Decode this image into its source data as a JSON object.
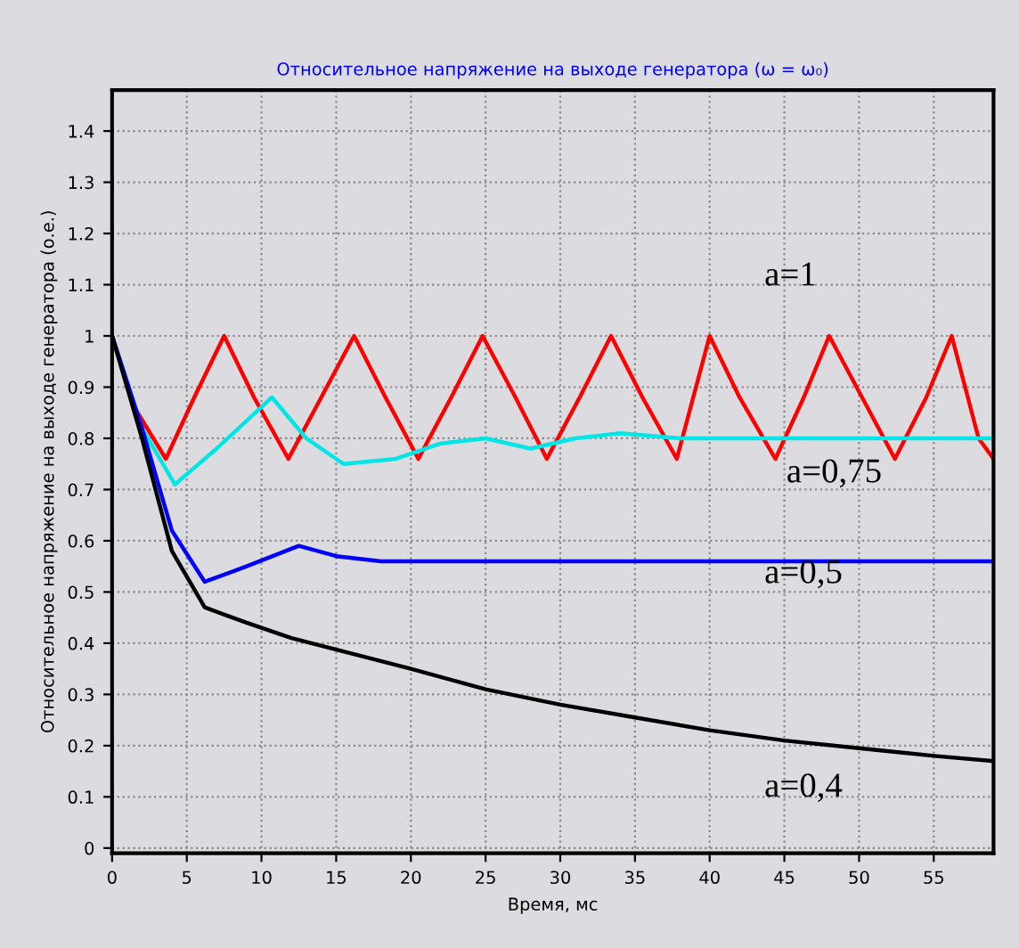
{
  "chart_data": {
    "type": "line",
    "title": "Относительное напряжение на выходе генератора (ω = ω₀)",
    "xlabel": "Время, мс",
    "ylabel": "Относительное напряжение на выходе генератора (о.е.)",
    "series": [
      {
        "name": "a=1",
        "color": "#ff0000",
        "x": [
          0,
          1.5,
          3.6,
          5.5,
          7.5,
          9.5,
          11.8,
          14,
          16.2,
          18.3,
          20.5,
          22.7,
          24.8,
          27,
          29.1,
          31.3,
          33.4,
          35.5,
          37.8,
          40,
          42,
          44.4,
          46.3,
          48,
          50.2,
          52.4,
          54.5,
          56.2,
          58,
          59
        ],
        "values": [
          1.0,
          0.86,
          0.76,
          0.88,
          1.0,
          0.88,
          0.76,
          0.88,
          1.0,
          0.88,
          0.76,
          0.88,
          1.0,
          0.88,
          0.76,
          0.88,
          1.0,
          0.88,
          0.76,
          1.0,
          0.88,
          0.76,
          0.88,
          1.0,
          0.88,
          0.76,
          0.88,
          1.0,
          0.8,
          0.76
        ]
      },
      {
        "name": "a=0,75",
        "color": "#00e5e5",
        "x": [
          0,
          2,
          4.2,
          7,
          10.7,
          13,
          15.5,
          19,
          22,
          25,
          28,
          31,
          34,
          38,
          42,
          46,
          50,
          55,
          59
        ],
        "values": [
          1.0,
          0.82,
          0.71,
          0.78,
          0.88,
          0.8,
          0.75,
          0.76,
          0.79,
          0.8,
          0.78,
          0.8,
          0.81,
          0.8,
          0.8,
          0.8,
          0.8,
          0.8,
          0.8
        ]
      },
      {
        "name": "a=0,5",
        "color": "#0000ff",
        "x": [
          0,
          2,
          4,
          6.2,
          9,
          12.5,
          15,
          18,
          22,
          30,
          40,
          50,
          59
        ],
        "values": [
          1.0,
          0.82,
          0.62,
          0.52,
          0.55,
          0.59,
          0.57,
          0.56,
          0.56,
          0.56,
          0.56,
          0.56,
          0.56
        ]
      },
      {
        "name": "a=0,4",
        "color": "#000000",
        "x": [
          0,
          2,
          4,
          6.2,
          9,
          12,
          16,
          20,
          25,
          30,
          35,
          40,
          45,
          50,
          55,
          59
        ],
        "values": [
          1.0,
          0.8,
          0.58,
          0.47,
          0.44,
          0.41,
          0.38,
          0.35,
          0.31,
          0.28,
          0.255,
          0.23,
          0.21,
          0.195,
          0.18,
          0.17
        ]
      }
    ],
    "xlim": [
      0,
      59
    ],
    "ylim": [
      -0.01,
      1.48
    ],
    "xticks": [
      0,
      5,
      10,
      15,
      20,
      25,
      30,
      35,
      40,
      45,
      50,
      55
    ],
    "yticks": [
      0,
      0.1,
      0.2,
      0.3,
      0.4,
      0.5,
      0.6,
      0.7,
      0.8,
      0.9,
      1,
      1.1,
      1.2,
      1.3,
      1.4
    ],
    "grid": true,
    "legend": false
  }
}
